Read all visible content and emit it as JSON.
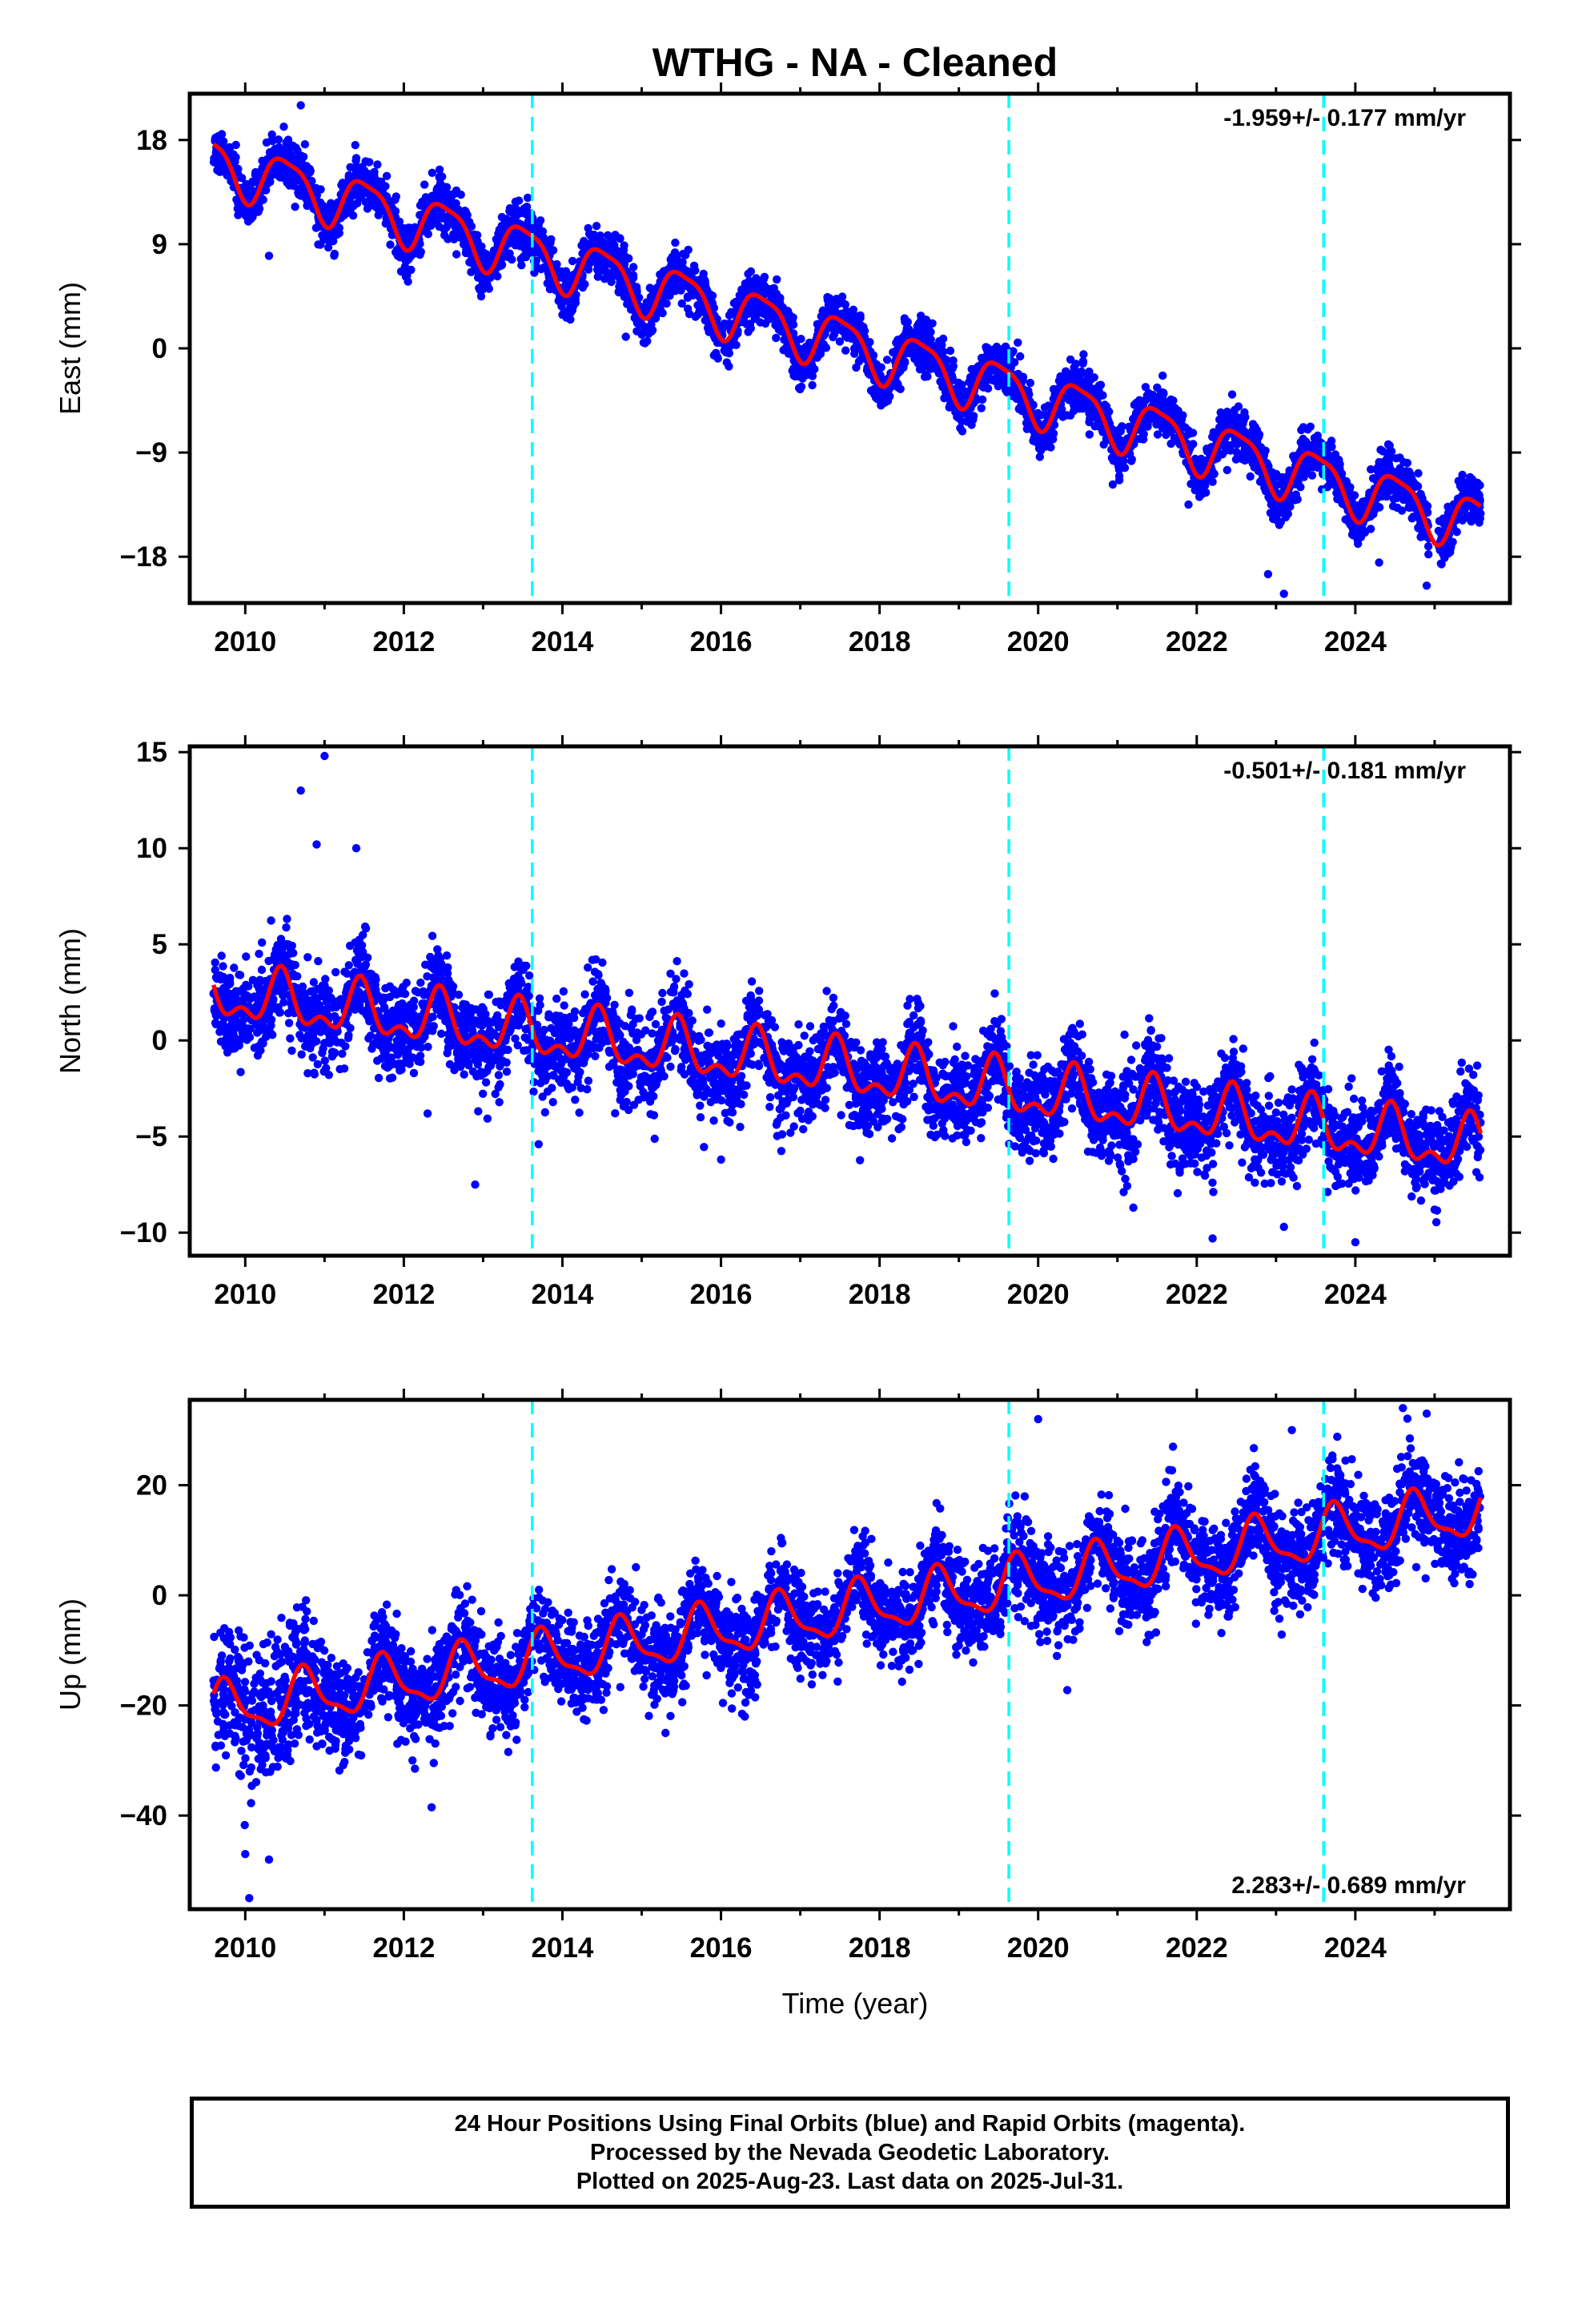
{
  "title": "WTHG  - NA - Cleaned",
  "x_axis_label": "Time (year)",
  "footer": {
    "line1": "24 Hour Positions Using Final Orbits (blue) and Rapid Orbits (magenta).",
    "line2": "Processed by the Nevada Geodetic Laboratory.",
    "line3": "Plotted on 2025-Aug-23. Last data on 2025-Jul-31."
  },
  "colors": {
    "final_orbits": "#0000ff",
    "model": "#ff0000",
    "event_lines": "#00ffff",
    "frame": "#000000"
  },
  "chart_data": [
    {
      "type": "scatter",
      "panel": "East",
      "ylabel": "East (mm)",
      "rate_text": "-1.959+/- 0.177 mm/yr",
      "rate_position": "top-right",
      "xlim": [
        2009.3,
        2025.95
      ],
      "ylim": [
        -22,
        22
      ],
      "xticks": [
        2010,
        2012,
        2014,
        2016,
        2018,
        2020,
        2022,
        2024
      ],
      "yticks": [
        18,
        9,
        0,
        -9,
        -18
      ],
      "yticklabels": [
        "18",
        "9",
        "0",
        "−9",
        "−18"
      ],
      "event_lines_x": [
        2013.62,
        2019.63,
        2023.6
      ],
      "model": {
        "x_start": 2009.6,
        "x_end": 2025.58,
        "offset": 16.1,
        "rate": -1.959,
        "annual_amplitude": 2.3,
        "annual_phase_year": 0.52,
        "semiannual_amplitude": 0.6,
        "semiannual_phase_year": 0.3
      },
      "scatter": {
        "count": 4800,
        "sigma": 1.05,
        "data_start": 2009.6,
        "data_end": 2025.58,
        "gaps": [
          [
            2024.93,
            2025.05
          ]
        ]
      },
      "outliers": [
        [
          2010.7,
          21
        ],
        [
          2023.1,
          -21.2
        ],
        [
          2024.9,
          -20.5
        ],
        [
          2022.9,
          -19.5
        ],
        [
          2010.3,
          8
        ],
        [
          2014.1,
          2.5
        ],
        [
          2014.8,
          1
        ],
        [
          2024.3,
          -18.5
        ]
      ]
    },
    {
      "type": "scatter",
      "panel": "North",
      "ylabel": "North (mm)",
      "rate_text": "-0.501+/- 0.181 mm/yr",
      "rate_position": "top-right",
      "xlim": [
        2009.3,
        2025.95
      ],
      "ylim": [
        -11.2,
        15.3
      ],
      "xticks": [
        2010,
        2012,
        2014,
        2016,
        2018,
        2020,
        2022,
        2024
      ],
      "yticks": [
        15,
        10,
        5,
        0,
        -5,
        -10
      ],
      "yticklabels": [
        "15",
        "10",
        "5",
        "0",
        "−5",
        "−10"
      ],
      "event_lines_x": [
        2013.62,
        2019.63,
        2023.6
      ],
      "model": {
        "x_start": 2009.6,
        "x_end": 2025.58,
        "offset": 2.4,
        "rate": -0.501,
        "annual_amplitude": 1.2,
        "annual_phase_year": 0.45,
        "semiannual_amplitude": 0.7,
        "semiannual_phase_year": 0.45
      },
      "scatter": {
        "count": 4800,
        "sigma": 1.15,
        "data_start": 2009.6,
        "data_end": 2025.58,
        "gaps": []
      },
      "outliers": [
        [
          2010.7,
          13
        ],
        [
          2011.0,
          14.8
        ],
        [
          2010.9,
          10.2
        ],
        [
          2011.4,
          10
        ],
        [
          2012.9,
          -7.5
        ],
        [
          2023.1,
          -9.7
        ],
        [
          2022.2,
          -10.3
        ],
        [
          2024.0,
          -10.5
        ],
        [
          2016.0,
          -6.2
        ],
        [
          2021.2,
          -8.7
        ],
        [
          2025.0,
          -8.8
        ],
        [
          2013.7,
          -5.4
        ],
        [
          2012.3,
          -3.8
        ]
      ]
    },
    {
      "type": "scatter",
      "panel": "Up",
      "ylabel": "Up (mm)",
      "rate_text": "2.283+/- 0.689 mm/yr",
      "rate_position": "bottom-right",
      "xlim": [
        2009.3,
        2025.95
      ],
      "ylim": [
        -57,
        35.5
      ],
      "xticks": [
        2010,
        2012,
        2014,
        2016,
        2018,
        2020,
        2022,
        2024
      ],
      "yticks": [
        20,
        0,
        -20,
        -40
      ],
      "yticklabels": [
        "20",
        "0",
        "−20",
        "−40"
      ],
      "event_lines_x": [
        2013.62,
        2019.63,
        2023.6
      ],
      "model": {
        "x_start": 2009.6,
        "x_end": 2025.58,
        "offset": -21.0,
        "rate": 2.283,
        "annual_amplitude": 4.5,
        "annual_phase_year": 0.75,
        "semiannual_amplitude": 1.5,
        "semiannual_phase_year": 0.2
      },
      "scatter": {
        "count": 4800,
        "sigma": 4.2,
        "data_start": 2009.6,
        "data_end": 2025.58,
        "gaps": []
      },
      "outliers": [
        [
          2010.05,
          -55
        ],
        [
          2010.3,
          -48
        ],
        [
          2012.35,
          -38.5
        ],
        [
          2010.0,
          -47
        ],
        [
          2020.0,
          32
        ],
        [
          2024.6,
          34
        ],
        [
          2024.9,
          33
        ],
        [
          2021.7,
          27
        ],
        [
          2023.2,
          30
        ],
        [
          2015.3,
          -25
        ],
        [
          2016.3,
          -22
        ]
      ]
    }
  ]
}
